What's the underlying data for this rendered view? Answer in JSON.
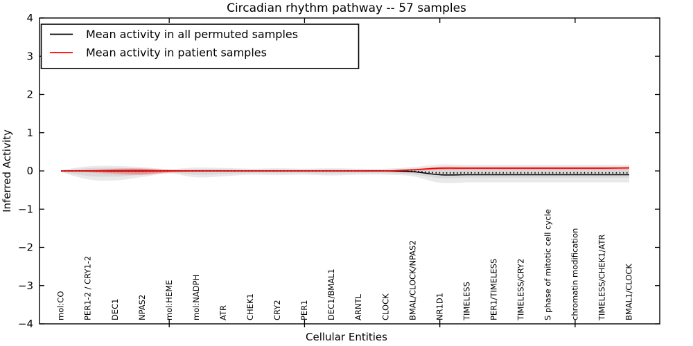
{
  "title": "Circadian rhythm pathway -- 57 samples",
  "axes": {
    "xlabel": "Cellular Entities",
    "ylabel": "Inferred Activity"
  },
  "legend": {
    "items": [
      {
        "label": "Mean activity in all permuted samples",
        "color": "#000000"
      },
      {
        "label": "Mean activity in patient samples",
        "color": "#ff0000"
      }
    ]
  },
  "chart_data": {
    "type": "line",
    "title": "Circadian rhythm pathway -- 57 samples",
    "xlabel": "Cellular Entities",
    "ylabel": "Inferred Activity",
    "ylim": [
      -4,
      4
    ],
    "yticks": [
      "4",
      "3",
      "2",
      "1",
      "0",
      "−1",
      "−2",
      "−3",
      "−4"
    ],
    "ytick_values": [
      4,
      3,
      2,
      1,
      0,
      -1,
      -2,
      -3,
      -4
    ],
    "xtick_indices": [
      4,
      9,
      14,
      19
    ],
    "grid": false,
    "legend_position": "upper left",
    "categories": [
      "mol:CO",
      "PER1-2 / CRY1-2",
      "DEC1",
      "NPAS2",
      "mol:HEME",
      "mol:NADPH",
      "ATR",
      "CHEK1",
      "CRY2",
      "PER1",
      "DEC1/BMAL1",
      "ARNTL",
      "CLOCK",
      "BMAL/CLOCK/NPAS2",
      "NR1D1",
      "TIMELESS",
      "PER1/TIMELESS",
      "TIMELESS/CRY2",
      "S phase of mitotic cell cycle",
      "chromatin modification",
      "TIMELESS/CHEK1/ATR",
      "BMAL1/CLOCK"
    ],
    "series": [
      {
        "name": "Mean activity in all permuted samples",
        "color": "#000000",
        "style": "solid",
        "values": [
          0,
          0,
          0,
          0,
          0,
          0,
          0,
          0,
          0,
          0,
          0,
          0,
          0,
          -0.02,
          -0.1,
          -0.1,
          -0.1,
          -0.1,
          -0.1,
          -0.1,
          -0.1,
          -0.1
        ]
      },
      {
        "name": "Mean activity in patient samples",
        "color": "#ff0000",
        "style": "solid",
        "values": [
          0,
          0,
          0.01,
          0.01,
          0,
          0,
          0,
          0,
          0,
          0,
          0,
          0,
          0,
          0.03,
          0.07,
          0.07,
          0.07,
          0.07,
          0.07,
          0.07,
          0.07,
          0.08
        ]
      },
      {
        "name": "permuted median (dotted)",
        "color": "#000000",
        "style": "dotted",
        "values": [
          0,
          0,
          0,
          0,
          0,
          0,
          0,
          0,
          0,
          0,
          0,
          0,
          0,
          -0.01,
          -0.05,
          -0.05,
          -0.05,
          -0.05,
          -0.05,
          -0.05,
          -0.05,
          -0.05
        ]
      }
    ],
    "bands": [
      {
        "name": "permuted-range-outer",
        "color": "#e9e9e9",
        "upper": [
          0.02,
          0.12,
          0.13,
          0.1,
          0.05,
          0.09,
          0.08,
          0.06,
          0.07,
          0.06,
          0.07,
          0.06,
          0.06,
          0.1,
          0.17,
          0.16,
          0.16,
          0.16,
          0.16,
          0.16,
          0.16,
          0.16
        ],
        "lower": [
          -0.03,
          -0.22,
          -0.25,
          -0.16,
          -0.07,
          -0.17,
          -0.14,
          -0.1,
          -0.11,
          -0.1,
          -0.12,
          -0.1,
          -0.1,
          -0.14,
          -0.31,
          -0.3,
          -0.3,
          -0.3,
          -0.3,
          -0.3,
          -0.3,
          -0.3
        ]
      },
      {
        "name": "permuted-range-inner",
        "color": "#d9d9d9",
        "upper": [
          0.01,
          0.07,
          0.08,
          0.06,
          0.03,
          0.05,
          0.05,
          0.03,
          0.04,
          0.03,
          0.04,
          0.03,
          0.03,
          0.06,
          0.1,
          0.1,
          0.1,
          0.1,
          0.1,
          0.1,
          0.1,
          0.1
        ],
        "lower": [
          -0.02,
          -0.13,
          -0.15,
          -0.1,
          -0.04,
          -0.1,
          -0.08,
          -0.06,
          -0.06,
          -0.06,
          -0.07,
          -0.06,
          -0.06,
          -0.09,
          -0.19,
          -0.18,
          -0.18,
          -0.18,
          -0.18,
          -0.18,
          -0.18,
          -0.18
        ]
      },
      {
        "name": "patient-range-outer",
        "color": "rgba(255,0,0,0.13)",
        "upper": [
          0.01,
          0.03,
          0.06,
          0.07,
          0.03,
          0.01,
          0.01,
          0.01,
          0.01,
          0.01,
          0.01,
          0.01,
          0.01,
          0.05,
          0.11,
          0.11,
          0.11,
          0.11,
          0.11,
          0.11,
          0.11,
          0.11
        ],
        "lower": [
          -0.01,
          -0.04,
          -0.09,
          -0.11,
          -0.05,
          -0.02,
          -0.01,
          -0.01,
          -0.01,
          -0.01,
          -0.01,
          -0.01,
          -0.01,
          0.0,
          0.02,
          0.03,
          0.03,
          0.03,
          0.03,
          0.03,
          0.03,
          0.03
        ]
      },
      {
        "name": "patient-range-inner",
        "color": "rgba(255,0,0,0.22)",
        "upper": [
          0.005,
          0.02,
          0.04,
          0.05,
          0.02,
          0.01,
          0.005,
          0.005,
          0.005,
          0.005,
          0.005,
          0.005,
          0.005,
          0.03,
          0.09,
          0.09,
          0.09,
          0.09,
          0.09,
          0.09,
          0.09,
          0.09
        ],
        "lower": [
          -0.005,
          -0.02,
          -0.06,
          -0.08,
          -0.03,
          -0.01,
          -0.005,
          -0.005,
          -0.005,
          -0.005,
          -0.005,
          -0.005,
          -0.005,
          0.01,
          0.04,
          0.05,
          0.05,
          0.05,
          0.05,
          0.05,
          0.05,
          0.05
        ]
      }
    ]
  }
}
